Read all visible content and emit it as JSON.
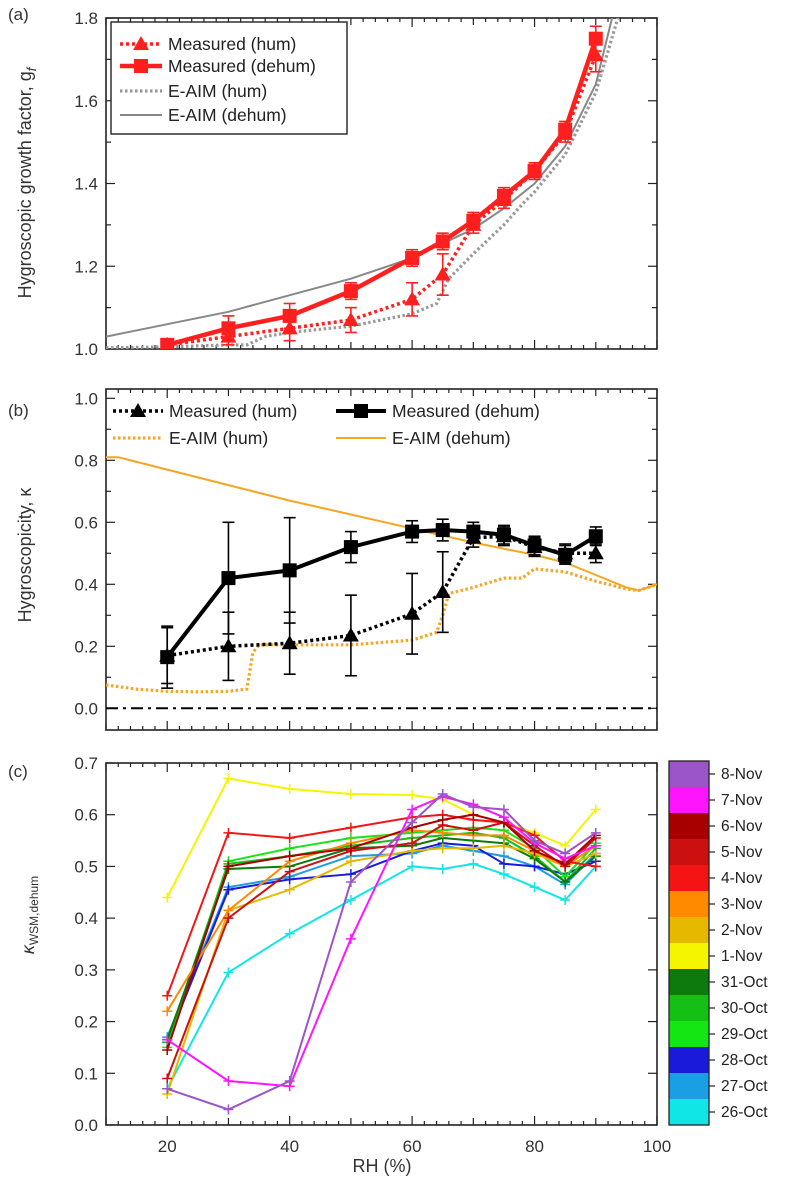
{
  "chart_data": [
    {
      "panel": "(a)",
      "type": "line",
      "ylabel": "Hygroscopic growth factor, g",
      "ylabel_sub": "f",
      "xlim": [
        10,
        100
      ],
      "ylim": [
        1.0,
        1.8
      ],
      "yticks": [
        "1.0",
        "1.2",
        "1.4",
        "1.6",
        "1.8"
      ],
      "legend": {
        "placement": "top-left",
        "labels": [
          "Measured (hum)",
          "Measured (dehum)",
          "E-AIM (hum)",
          "E-AIM (dehum)"
        ]
      },
      "series": [
        {
          "name": "Measured (hum)",
          "color": "#ff1f1f",
          "style": "dotted",
          "marker": "triangle",
          "x": [
            20,
            30,
            40,
            50,
            60,
            65,
            70,
            75,
            80,
            85,
            90
          ],
          "y": [
            1.01,
            1.03,
            1.05,
            1.07,
            1.12,
            1.18,
            1.3,
            1.36,
            1.43,
            1.52,
            1.71
          ],
          "err": [
            0.01,
            0.02,
            0.03,
            0.03,
            0.04,
            0.05,
            0.02,
            0.02,
            0.02,
            0.02,
            0.04
          ]
        },
        {
          "name": "Measured (dehum)",
          "color": "#ff1f1f",
          "style": "solid",
          "marker": "square",
          "x": [
            20,
            30,
            40,
            50,
            60,
            65,
            70,
            75,
            80,
            85,
            90
          ],
          "y": [
            1.01,
            1.05,
            1.08,
            1.14,
            1.22,
            1.26,
            1.31,
            1.37,
            1.43,
            1.53,
            1.75
          ],
          "err": [
            0.01,
            0.03,
            0.03,
            0.02,
            0.02,
            0.02,
            0.02,
            0.02,
            0.02,
            0.02,
            0.03
          ]
        },
        {
          "name": "E-AIM (hum)",
          "color": "#999999",
          "style": "dotted",
          "x": [
            10,
            20,
            30,
            33,
            36,
            40,
            50,
            60,
            64,
            66,
            70,
            75,
            78,
            80,
            85,
            90,
            94
          ],
          "y": [
            1.003,
            1.005,
            1.01,
            1.01,
            1.03,
            1.04,
            1.055,
            1.085,
            1.11,
            1.17,
            1.23,
            1.3,
            1.35,
            1.38,
            1.47,
            1.62,
            1.82
          ]
        },
        {
          "name": "E-AIM (dehum)",
          "color": "#888888",
          "style": "solid",
          "x": [
            10,
            20,
            30,
            40,
            50,
            60,
            70,
            75,
            80,
            85,
            90,
            93
          ],
          "y": [
            1.03,
            1.06,
            1.09,
            1.13,
            1.17,
            1.22,
            1.29,
            1.34,
            1.4,
            1.49,
            1.64,
            1.82
          ]
        }
      ]
    },
    {
      "panel": "(b)",
      "type": "line",
      "ylabel": "Hygroscopicity, κ",
      "xlim": [
        10,
        100
      ],
      "ylim": [
        -0.07,
        1.03
      ],
      "yticks": [
        "0.0",
        "0.2",
        "0.4",
        "0.6",
        "0.8",
        "1.0"
      ],
      "legend": {
        "placement": "top",
        "labels": [
          "Measured (hum)",
          "Measured (dehum)",
          "E-AIM (hum)",
          "E-AIM (dehum)"
        ]
      },
      "series": [
        {
          "name": "Measured (hum)",
          "color": "#000000",
          "style": "dotted",
          "marker": "triangle",
          "x": [
            20,
            30,
            40,
            50,
            60,
            65,
            70,
            75,
            80,
            85,
            90
          ],
          "y": [
            0.17,
            0.2,
            0.21,
            0.235,
            0.305,
            0.375,
            0.55,
            0.555,
            0.52,
            0.5,
            0.5
          ],
          "err": [
            0.09,
            0.11,
            0.1,
            0.13,
            0.13,
            0.13,
            0.03,
            0.03,
            0.03,
            0.03,
            0.03
          ]
        },
        {
          "name": "Measured (dehum)",
          "color": "#000000",
          "style": "solid",
          "marker": "square",
          "x": [
            20,
            30,
            40,
            50,
            60,
            65,
            70,
            75,
            80,
            85,
            90
          ],
          "y": [
            0.165,
            0.42,
            0.445,
            0.52,
            0.57,
            0.575,
            0.57,
            0.56,
            0.525,
            0.495,
            0.555
          ],
          "err": [
            0.1,
            0.18,
            0.17,
            0.05,
            0.035,
            0.035,
            0.03,
            0.03,
            0.03,
            0.03,
            0.03
          ]
        },
        {
          "name": "E-AIM (hum)",
          "color": "#f5a623",
          "style": "dotted",
          "x": [
            10,
            15,
            20,
            25,
            30,
            33,
            34,
            35,
            40,
            50,
            60,
            64,
            65,
            66,
            70,
            75,
            78,
            80,
            85,
            90,
            95,
            97,
            100
          ],
          "y": [
            0.075,
            0.062,
            0.055,
            0.053,
            0.055,
            0.062,
            0.18,
            0.205,
            0.205,
            0.205,
            0.22,
            0.245,
            0.3,
            0.37,
            0.39,
            0.42,
            0.42,
            0.45,
            0.44,
            0.41,
            0.385,
            0.38,
            0.4
          ]
        },
        {
          "name": "E-AIM (dehum)",
          "color": "#f5a623",
          "style": "solid",
          "x": [
            10,
            12,
            20,
            30,
            40,
            50,
            60,
            70,
            80,
            85,
            90,
            95,
            97,
            100
          ],
          "y": [
            0.81,
            0.81,
            0.77,
            0.72,
            0.67,
            0.625,
            0.58,
            0.535,
            0.495,
            0.47,
            0.43,
            0.39,
            0.38,
            0.4
          ]
        },
        {
          "name": "zero",
          "color": "#000000",
          "style": "dashdot",
          "x": [
            10,
            100
          ],
          "y": [
            0,
            0
          ]
        }
      ]
    },
    {
      "panel": "(c)",
      "type": "line",
      "ylabel": "κ",
      "ylabel_sub": "WSM,dehum",
      "xlabel": "RH (%)",
      "xlim": [
        10,
        100
      ],
      "ylim": [
        0.0,
        0.7
      ],
      "xticks": [
        "20",
        "40",
        "60",
        "80",
        "100"
      ],
      "yticks": [
        "0.0",
        "0.1",
        "0.2",
        "0.3",
        "0.4",
        "0.5",
        "0.6",
        "0.7"
      ],
      "x": [
        20,
        30,
        40,
        50,
        60,
        65,
        70,
        75,
        80,
        85,
        90
      ],
      "legend": {
        "placement": "right colorbar",
        "labels": [
          "8-Nov",
          "7-Nov",
          "6-Nov",
          "5-Nov",
          "4-Nov",
          "3-Nov",
          "2-Nov",
          "1-Nov",
          "31-Oct",
          "30-Oct",
          "29-Oct",
          "28-Oct",
          "27-Oct",
          "26-Oct"
        ]
      },
      "series": [
        {
          "name": "26-Oct",
          "color": "#11e6e6",
          "values": [
            0.07,
            0.295,
            0.37,
            0.435,
            0.5,
            0.495,
            0.505,
            0.485,
            0.46,
            0.435,
            0.5
          ]
        },
        {
          "name": "27-Oct",
          "color": "#1a9ee6",
          "values": [
            0.17,
            0.46,
            0.48,
            0.52,
            0.525,
            0.54,
            0.53,
            0.52,
            0.5,
            0.465,
            0.525
          ]
        },
        {
          "name": "28-Oct",
          "color": "#1a1adb",
          "values": [
            0.16,
            0.455,
            0.475,
            0.485,
            0.53,
            0.545,
            0.54,
            0.505,
            0.5,
            0.485,
            0.51
          ]
        },
        {
          "name": "29-Oct",
          "color": "#14e614",
          "values": [
            0.15,
            0.51,
            0.535,
            0.555,
            0.565,
            0.57,
            0.575,
            0.57,
            0.535,
            0.48,
            0.545
          ]
        },
        {
          "name": "30-Oct",
          "color": "#14c014",
          "values": [
            0.16,
            0.505,
            0.52,
            0.54,
            0.555,
            0.56,
            0.565,
            0.555,
            0.52,
            0.47,
            0.535
          ]
        },
        {
          "name": "31-Oct",
          "color": "#0c7a0c",
          "values": [
            0.165,
            0.495,
            0.5,
            0.535,
            0.54,
            0.555,
            0.55,
            0.545,
            0.515,
            0.47,
            0.52
          ]
        },
        {
          "name": "1-Nov",
          "color": "#f5f500",
          "values": [
            0.44,
            0.67,
            0.65,
            0.64,
            0.638,
            0.63,
            0.6,
            0.585,
            0.565,
            0.54,
            0.61
          ]
        },
        {
          "name": "2-Nov",
          "color": "#e6b800",
          "values": [
            0.06,
            0.415,
            0.455,
            0.51,
            0.53,
            0.535,
            0.535,
            0.54,
            0.525,
            0.5,
            0.525
          ]
        },
        {
          "name": "3-Nov",
          "color": "#ff8a00",
          "values": [
            0.22,
            0.415,
            0.51,
            0.545,
            0.57,
            0.565,
            0.56,
            0.56,
            0.53,
            0.5,
            0.54
          ]
        },
        {
          "name": "4-Nov",
          "color": "#f51414",
          "values": [
            0.25,
            0.565,
            0.555,
            0.575,
            0.595,
            0.6,
            0.59,
            0.585,
            0.56,
            0.51,
            0.5
          ]
        },
        {
          "name": "5-Nov",
          "color": "#cc1010",
          "values": [
            0.09,
            0.4,
            0.49,
            0.53,
            0.545,
            0.58,
            0.57,
            0.585,
            0.54,
            0.5,
            0.555
          ]
        },
        {
          "name": "6-Nov",
          "color": "#a80000",
          "values": [
            0.145,
            0.5,
            0.52,
            0.535,
            0.575,
            0.59,
            0.6,
            0.585,
            0.53,
            0.505,
            0.56
          ]
        },
        {
          "name": "7-Nov",
          "color": "#ff14ff",
          "values": [
            0.165,
            0.085,
            0.075,
            0.36,
            0.61,
            0.635,
            0.62,
            0.595,
            0.545,
            0.515,
            0.54
          ]
        },
        {
          "name": "8-Nov",
          "color": "#9b55c8",
          "values": [
            0.07,
            0.03,
            0.085,
            0.47,
            0.585,
            0.64,
            0.615,
            0.61,
            0.55,
            0.525,
            0.565
          ]
        }
      ]
    }
  ]
}
